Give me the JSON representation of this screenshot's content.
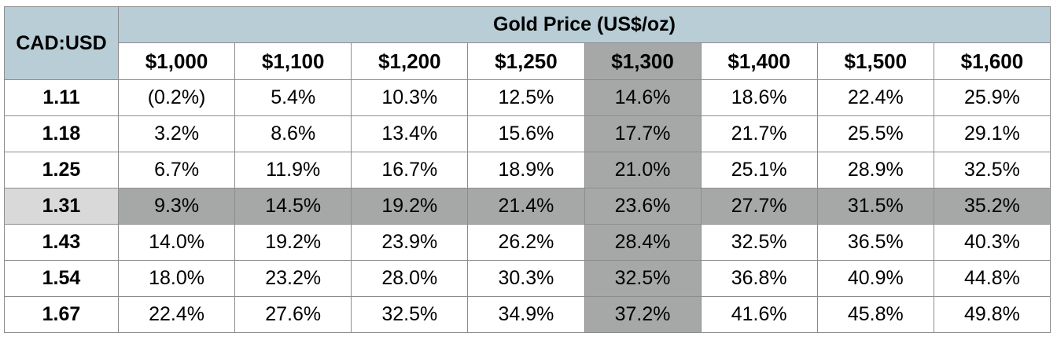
{
  "table": {
    "corner_label": "CAD:USD",
    "group_label": "Gold Price (US$/oz)",
    "columns": [
      "$1,000",
      "$1,100",
      "$1,200",
      "$1,250",
      "$1,300",
      "$1,400",
      "$1,500",
      "$1,600"
    ],
    "highlight_column_index": 4,
    "highlight_row_index": 3,
    "highlight_color": "#a6a8a7",
    "header_color": "#b8cdd6",
    "rows": [
      {
        "label": "1.11",
        "values": [
          "(0.2%)",
          "5.4%",
          "10.3%",
          "12.5%",
          "14.6%",
          "18.6%",
          "22.4%",
          "25.9%"
        ]
      },
      {
        "label": "1.18",
        "values": [
          "3.2%",
          "8.6%",
          "13.4%",
          "15.6%",
          "17.7%",
          "21.7%",
          "25.5%",
          "29.1%"
        ]
      },
      {
        "label": "1.25",
        "values": [
          "6.7%",
          "11.9%",
          "16.7%",
          "18.9%",
          "21.0%",
          "25.1%",
          "28.9%",
          "32.5%"
        ]
      },
      {
        "label": "1.31",
        "values": [
          "9.3%",
          "14.5%",
          "19.2%",
          "21.4%",
          "23.6%",
          "27.7%",
          "31.5%",
          "35.2%"
        ]
      },
      {
        "label": "1.43",
        "values": [
          "14.0%",
          "19.2%",
          "23.9%",
          "26.2%",
          "28.4%",
          "32.5%",
          "36.5%",
          "40.3%"
        ]
      },
      {
        "label": "1.54",
        "values": [
          "18.0%",
          "23.2%",
          "28.0%",
          "30.3%",
          "32.5%",
          "36.8%",
          "40.9%",
          "44.8%"
        ]
      },
      {
        "label": "1.67",
        "values": [
          "22.4%",
          "27.6%",
          "32.5%",
          "34.9%",
          "37.2%",
          "41.6%",
          "45.8%",
          "49.8%"
        ]
      }
    ]
  }
}
